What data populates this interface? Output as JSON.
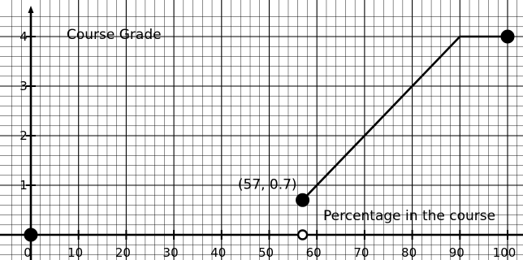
{
  "chart_data": {
    "type": "line",
    "xlabel": "Percentage in the course",
    "ylabel": "Course Grade",
    "xlim": [
      -4.5,
      104
    ],
    "ylim": [
      -0.45,
      4.45
    ],
    "x_ticks": [
      0,
      10,
      20,
      30,
      40,
      50,
      60,
      70,
      80,
      90,
      100
    ],
    "y_ticks": [
      1,
      2,
      3,
      4
    ],
    "grid": true,
    "series": [
      {
        "x": [
          57,
          90,
          100
        ],
        "y": [
          0.7,
          4,
          4
        ]
      }
    ],
    "points": [
      {
        "x": 0,
        "y": 0,
        "filled": true
      },
      {
        "x": 57,
        "y": 0,
        "filled": false
      },
      {
        "x": 57,
        "y": 0.7,
        "filled": true
      },
      {
        "x": 100,
        "y": 4,
        "filled": true
      }
    ],
    "annotations": [
      {
        "text": "(57, 0.7)",
        "x": 57,
        "y": 0.7
      }
    ]
  }
}
